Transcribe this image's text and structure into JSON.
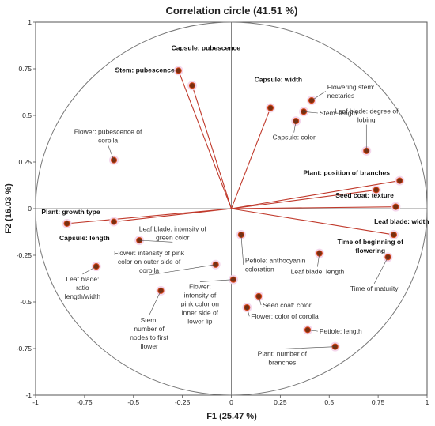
{
  "chart_data": {
    "type": "scatter",
    "subtype": "correlation-circle",
    "title": "Correlation circle (41.51 %)",
    "xlabel": "F1 (25.47 %)",
    "ylabel": "F2 (16.03 %)",
    "xlim": [
      -1,
      1
    ],
    "ylim": [
      -1,
      1
    ],
    "xticks": [
      "-1",
      "-0.75",
      "-0.5",
      "-0.25",
      "0",
      "0.25",
      "0.5",
      "0.75",
      "1"
    ],
    "yticks": [
      "1",
      "0.75",
      "0.5",
      "0.25",
      "0",
      "-0.25",
      "-0.5",
      "-0.75",
      "-1"
    ],
    "colors": {
      "vector": "#c0392b",
      "point": "#7a2e10",
      "circle": "#777777",
      "highlight": "#f3d3ea"
    },
    "points": [
      {
        "label": "Capsule: pubescence",
        "x": -0.2,
        "y": 0.66,
        "vector": true,
        "bold": true,
        "anchor": "middle",
        "lx": -0.13,
        "ly": 0.85
      },
      {
        "label": "Stem: pubescence",
        "x": -0.27,
        "y": 0.74,
        "vector": true,
        "bold": true,
        "anchor": "end",
        "lx": -0.29,
        "ly": 0.73
      },
      {
        "label": "Capsule: width",
        "x": 0.2,
        "y": 0.54,
        "vector": true,
        "bold": true,
        "anchor": "middle",
        "lx": 0.24,
        "ly": 0.68
      },
      {
        "label": "Flowering stem:|nectaries",
        "x": 0.41,
        "y": 0.58,
        "vector": false,
        "bold": false,
        "anchor": "start",
        "lx": 0.49,
        "ly": 0.64
      },
      {
        "label": "Stem: length",
        "x": 0.37,
        "y": 0.52,
        "vector": false,
        "bold": false,
        "anchor": "start",
        "lx": 0.45,
        "ly": 0.5
      },
      {
        "label": "Capsule: color",
        "x": 0.33,
        "y": 0.47,
        "vector": false,
        "bold": false,
        "anchor": "middle",
        "lx": 0.32,
        "ly": 0.37
      },
      {
        "label": "Leaf blade: degree of|lobing",
        "x": 0.69,
        "y": 0.31,
        "vector": false,
        "bold": false,
        "anchor": "middle",
        "lx": 0.69,
        "ly": 0.51
      },
      {
        "label": "Flower: pubescence of|corolla",
        "x": -0.6,
        "y": 0.26,
        "vector": false,
        "bold": false,
        "anchor": "middle",
        "lx": -0.63,
        "ly": 0.4
      },
      {
        "label": "Plant: position of branches",
        "x": 0.86,
        "y": 0.15,
        "vector": true,
        "bold": true,
        "anchor": "end",
        "lx": 0.81,
        "ly": 0.18
      },
      {
        "label": "Seed coat: texture",
        "x": 0.74,
        "y": 0.1,
        "vector": true,
        "bold": true,
        "anchor": "end",
        "lx": 0.83,
        "ly": 0.06
      },
      {
        "label": "Leaf blade: width",
        "x": 0.84,
        "y": 0.01,
        "vector": true,
        "bold": true,
        "anchor": "middle",
        "lx": 0.87,
        "ly": -0.08
      },
      {
        "label": "Plant: growth type",
        "x": -0.84,
        "y": -0.08,
        "vector": true,
        "bold": true,
        "anchor": "start",
        "lx": -0.97,
        "ly": -0.03
      },
      {
        "label": "Capsule: length",
        "x": -0.6,
        "y": -0.07,
        "vector": true,
        "bold": true,
        "anchor": "middle",
        "lx": -0.75,
        "ly": -0.17
      },
      {
        "label": "Leaf blade: intensity of|green color",
        "x": -0.47,
        "y": -0.17,
        "vector": false,
        "bold": false,
        "anchor": "middle",
        "lx": -0.3,
        "ly": -0.12
      },
      {
        "label": "Time of beginning of|flowering",
        "x": 0.83,
        "y": -0.14,
        "vector": true,
        "bold": true,
        "anchor": "middle",
        "lx": 0.71,
        "ly": -0.19
      },
      {
        "label": "Petiole: anthocyanin|coloration",
        "x": 0.05,
        "y": -0.14,
        "vector": false,
        "bold": false,
        "anchor": "start",
        "lx": 0.07,
        "ly": -0.29
      },
      {
        "label": "Leaf blade: length",
        "x": 0.45,
        "y": -0.24,
        "vector": false,
        "bold": false,
        "anchor": "middle",
        "lx": 0.44,
        "ly": -0.35
      },
      {
        "label": "Time of maturity",
        "x": 0.8,
        "y": -0.26,
        "vector": false,
        "bold": false,
        "anchor": "middle",
        "lx": 0.73,
        "ly": -0.44
      },
      {
        "label": "Flower: intensity of pink|color on outer side of|corolla",
        "x": -0.08,
        "y": -0.3,
        "vector": false,
        "bold": false,
        "anchor": "middle",
        "lx": -0.42,
        "ly": -0.25
      },
      {
        "label": "Leaf blade:|ratio|length/width",
        "x": -0.69,
        "y": -0.31,
        "vector": false,
        "bold": false,
        "anchor": "middle",
        "lx": -0.76,
        "ly": -0.39
      },
      {
        "label": "Flower:|intensity of|pink color on|inner side of|lower lip",
        "x": 0.01,
        "y": -0.38,
        "vector": false,
        "bold": false,
        "anchor": "middle",
        "lx": -0.16,
        "ly": -0.43
      },
      {
        "label": "Stem:|number of|nodes to first|flower",
        "x": -0.36,
        "y": -0.44,
        "vector": false,
        "bold": false,
        "anchor": "middle",
        "lx": -0.42,
        "ly": -0.61
      },
      {
        "label": "Seed coat: color",
        "x": 0.14,
        "y": -0.47,
        "vector": false,
        "bold": false,
        "anchor": "start",
        "lx": 0.16,
        "ly": -0.53
      },
      {
        "label": "Flower: color of corolla",
        "x": 0.08,
        "y": -0.53,
        "vector": false,
        "bold": false,
        "anchor": "start",
        "lx": 0.1,
        "ly": -0.59
      },
      {
        "label": "Petiole: length",
        "x": 0.39,
        "y": -0.65,
        "vector": false,
        "bold": false,
        "anchor": "start",
        "lx": 0.45,
        "ly": -0.67
      },
      {
        "label": "Plant: number of|branches",
        "x": 0.53,
        "y": -0.74,
        "vector": false,
        "bold": false,
        "anchor": "middle",
        "lx": 0.26,
        "ly": -0.79
      }
    ]
  }
}
